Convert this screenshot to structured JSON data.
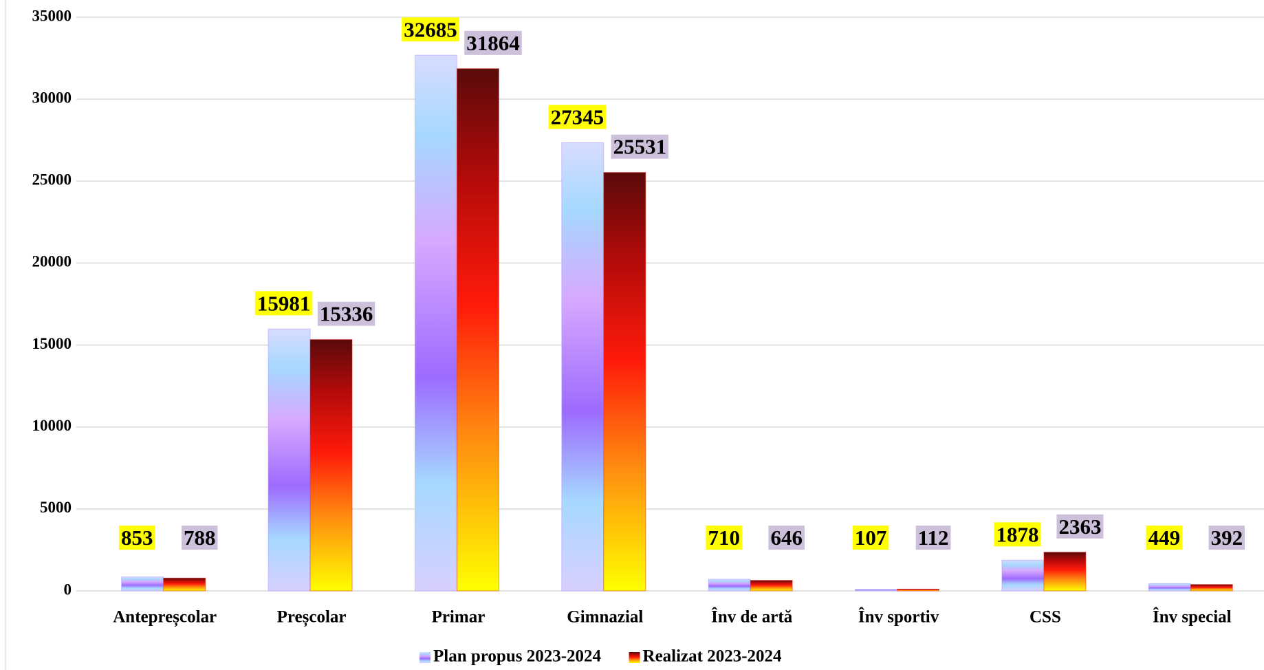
{
  "chart_data": {
    "type": "bar",
    "categories": [
      "Antepreșcolar",
      "Preșcolar",
      "Primar",
      "Gimnazial",
      "Înv de artă",
      "Înv sportiv",
      "CSS",
      "Înv special"
    ],
    "series": [
      {
        "name": "Plan propus 2023-2024",
        "color": "#a98bff",
        "label_background": "#ffff00",
        "values": [
          853,
          15981,
          32685,
          27345,
          710,
          107,
          1878,
          449
        ]
      },
      {
        "name": "Realizat 2023-2024",
        "color": "#e8261a",
        "label_background": "#ccc0da",
        "values": [
          788,
          15336,
          31864,
          25531,
          646,
          112,
          2363,
          392
        ]
      }
    ],
    "ylim": [
      0,
      35000
    ],
    "yticks": [
      0,
      5000,
      10000,
      15000,
      20000,
      25000,
      30000,
      35000
    ],
    "grid": true,
    "legend": "bottom"
  }
}
